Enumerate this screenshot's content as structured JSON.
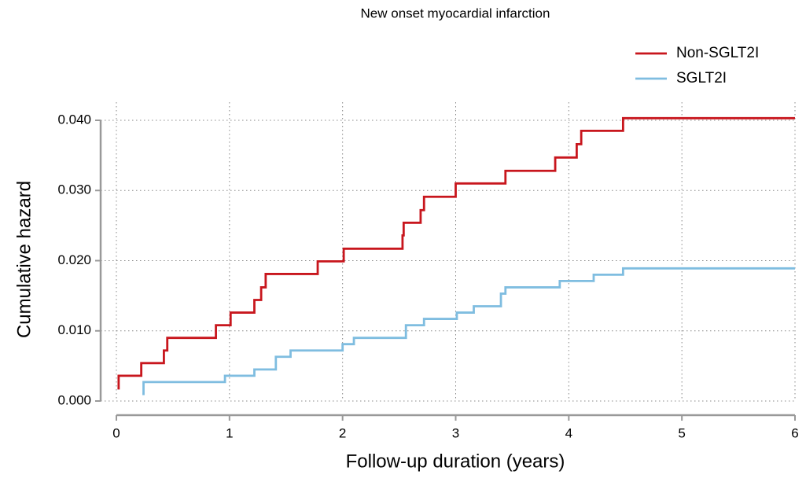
{
  "chart_data": {
    "type": "step",
    "title": "New onset myocardial infarction",
    "x_label": "Follow-up duration (years)",
    "y_label": "Cumulative hazard",
    "xlim": [
      0,
      6
    ],
    "ylim": [
      0,
      0.04
    ],
    "xticks": [
      0,
      1,
      2,
      3,
      4,
      5,
      6
    ],
    "yticks": [
      {
        "value": 0,
        "label": "0.000"
      },
      {
        "value": 0.01,
        "label": "0.010"
      },
      {
        "value": 0.02,
        "label": "0.020"
      },
      {
        "value": 0.03,
        "label": "0.030"
      },
      {
        "value": 0.04,
        "label": "0.040"
      }
    ],
    "grid": true,
    "legend": "top-right",
    "series": [
      {
        "name": "Non-SGLT2I",
        "color": "#c8161d",
        "x": [
          0.01,
          0.02,
          0.22,
          0.42,
          0.45,
          0.88,
          1.01,
          1.22,
          1.28,
          1.32,
          1.78,
          2.01,
          2.53,
          2.54,
          2.69,
          2.72,
          3.0,
          3.44,
          3.88,
          4.07,
          4.11,
          4.48,
          6.0
        ],
        "values": [
          0.0018,
          0.0036,
          0.0054,
          0.0072,
          0.009,
          0.0108,
          0.0126,
          0.0144,
          0.0162,
          0.0181,
          0.0199,
          0.0217,
          0.0236,
          0.0254,
          0.0272,
          0.0291,
          0.031,
          0.0328,
          0.0347,
          0.0366,
          0.0385,
          0.0403,
          0.0403
        ]
      },
      {
        "name": "SGLT2I",
        "color": "#7fbde0",
        "x": [
          0.23,
          0.24,
          0.96,
          1.22,
          1.41,
          1.54,
          2.0,
          2.1,
          2.56,
          2.72,
          3.01,
          3.16,
          3.4,
          3.44,
          3.92,
          4.22,
          4.48,
          6.0
        ],
        "values": [
          0.001,
          0.0027,
          0.0036,
          0.0045,
          0.0063,
          0.0072,
          0.0081,
          0.009,
          0.0108,
          0.0117,
          0.0126,
          0.0135,
          0.0153,
          0.0162,
          0.0171,
          0.018,
          0.0189,
          0.0189
        ]
      }
    ]
  }
}
